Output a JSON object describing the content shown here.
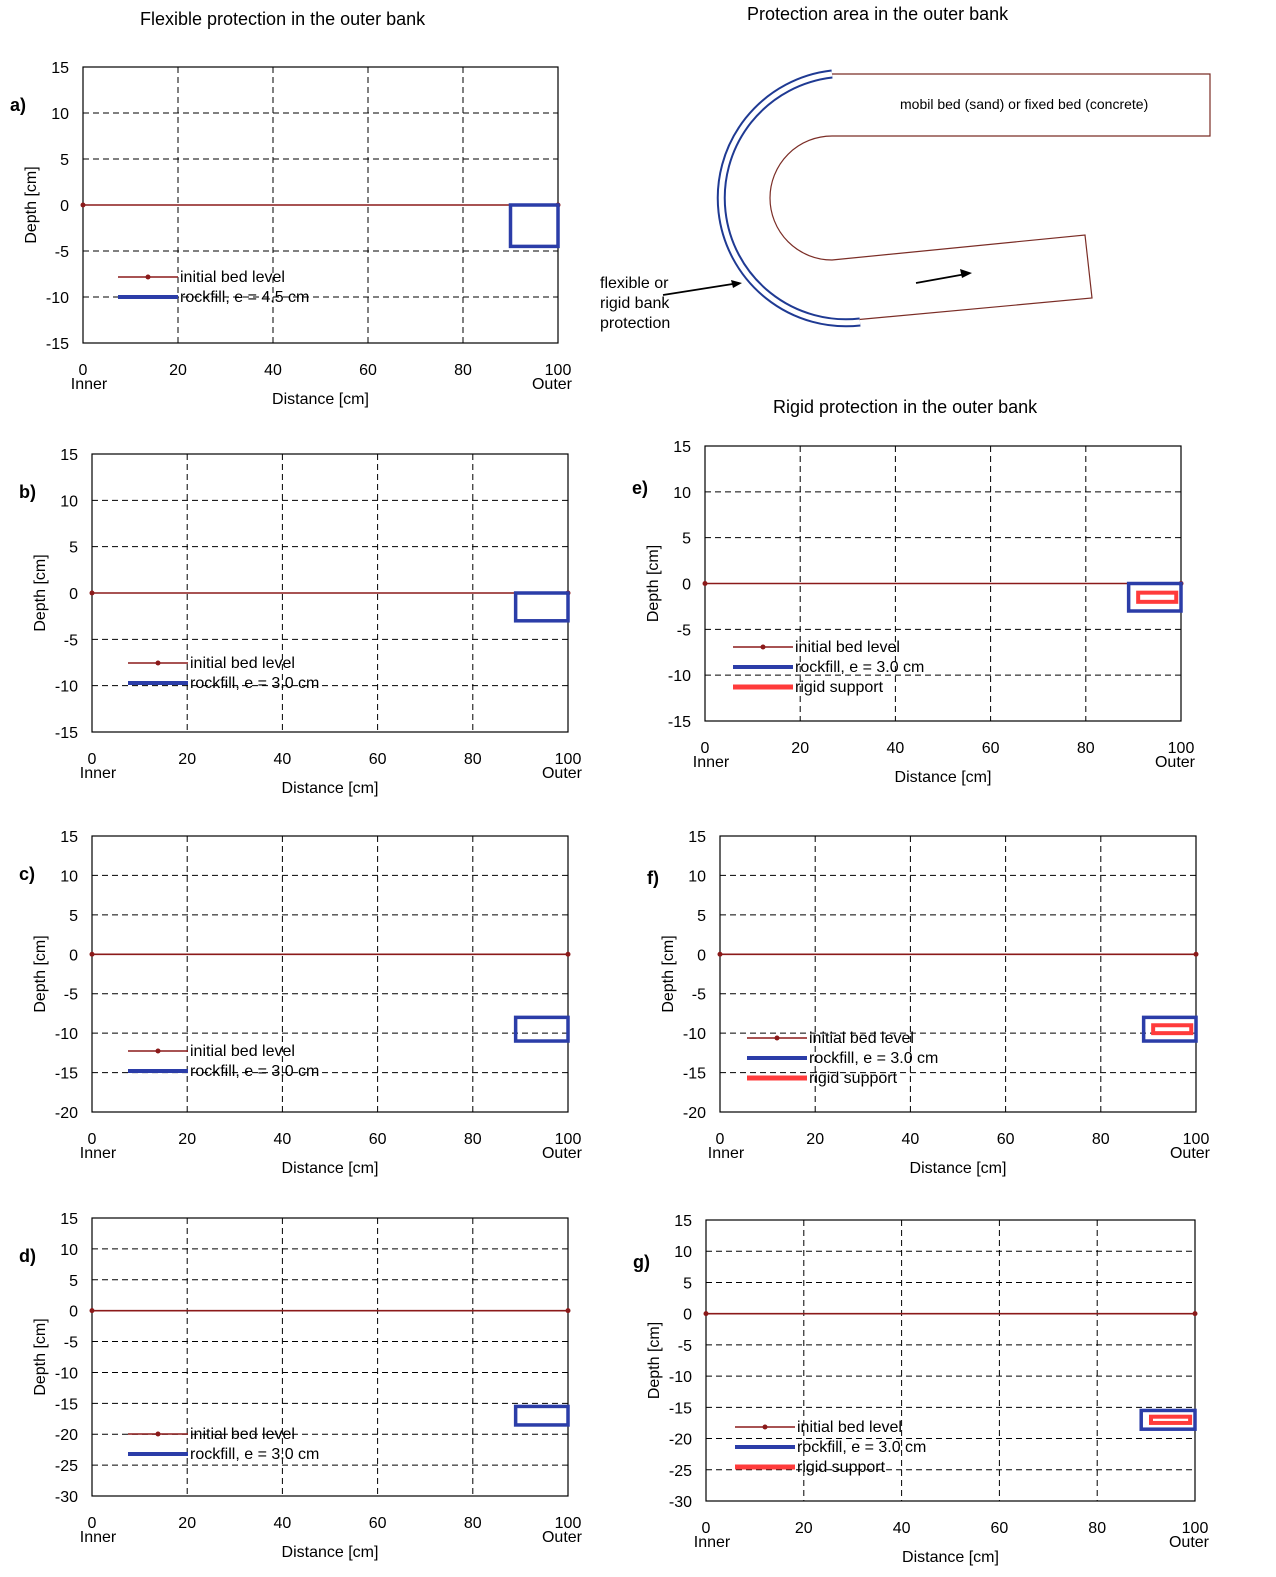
{
  "titles": {
    "flexible": "Flexible protection in the outer bank",
    "area": "Protection area in the outer bank",
    "rigid": "Rigid protection in the outer bank"
  },
  "schematic": {
    "bed_label": "mobil bed (sand) or fixed bed (concrete)",
    "protection_label": [
      "flexible or",
      "rigid bank",
      "protection"
    ],
    "colors": {
      "protection": "#1f3a93",
      "bank": "#7b2d26",
      "arrow": "#000000"
    }
  },
  "colors": {
    "bed": "#8b1a1a",
    "rockfill": "#2b3da8",
    "rigid": "#ff3b3b",
    "grid": "#000000"
  },
  "chart_data": [
    {
      "type": "line",
      "panel": "a)",
      "xlabel": "Distance [cm]",
      "ylabel": "Depth [cm]",
      "xlim": [
        0,
        100
      ],
      "ylim": [
        -15,
        15
      ],
      "xticks": [
        "0",
        "20",
        "40",
        "60",
        "80",
        "100"
      ],
      "yticks": [
        "15",
        "10",
        "5",
        "0",
        "-5",
        "-10",
        "-15"
      ],
      "inner_label": "Inner",
      "outer_label": "Outer",
      "grid": true,
      "series": [
        {
          "name": "initial bed level",
          "x": [
            0,
            100
          ],
          "y": [
            0,
            0
          ]
        },
        {
          "name": "rockfill, e = 4.5 cm",
          "x": [
            90,
            100
          ],
          "y": [
            0,
            -4.5
          ]
        }
      ]
    },
    {
      "type": "line",
      "panel": "b)",
      "xlabel": "Distance [cm]",
      "ylabel": "Depth [cm]",
      "xlim": [
        0,
        100
      ],
      "ylim": [
        -15,
        15
      ],
      "xticks": [
        "0",
        "20",
        "40",
        "60",
        "80",
        "100"
      ],
      "yticks": [
        "15",
        "10",
        "5",
        "0",
        "-5",
        "-10",
        "-15"
      ],
      "inner_label": "Inner",
      "outer_label": "Outer",
      "grid": true,
      "series": [
        {
          "name": "initial bed level",
          "x": [
            0,
            100
          ],
          "y": [
            0,
            0
          ]
        },
        {
          "name": "rockfill, e = 3.0 cm",
          "x": [
            89,
            100
          ],
          "y": [
            0,
            -3
          ]
        }
      ]
    },
    {
      "type": "line",
      "panel": "c)",
      "xlabel": "Distance [cm]",
      "ylabel": "Depth [cm]",
      "xlim": [
        0,
        100
      ],
      "ylim": [
        -20,
        15
      ],
      "xticks": [
        "0",
        "20",
        "40",
        "60",
        "80",
        "100"
      ],
      "yticks": [
        "15",
        "10",
        "5",
        "0",
        "-5",
        "-10",
        "-15",
        "-20"
      ],
      "inner_label": "Inner",
      "outer_label": "Outer",
      "grid": true,
      "series": [
        {
          "name": "initial bed level",
          "x": [
            0,
            100
          ],
          "y": [
            0,
            0
          ]
        },
        {
          "name": "rockfill, e = 3.0 cm",
          "x": [
            89,
            100
          ],
          "y": [
            -8,
            -11
          ]
        }
      ]
    },
    {
      "type": "line",
      "panel": "d)",
      "xlabel": "Distance [cm]",
      "ylabel": "Depth [cm]",
      "xlim": [
        0,
        100
      ],
      "ylim": [
        -30,
        15
      ],
      "xticks": [
        "0",
        "20",
        "40",
        "60",
        "80",
        "100"
      ],
      "yticks": [
        "15",
        "10",
        "5",
        "0",
        "-5",
        "-10",
        "-15",
        "-20",
        "-25",
        "-30"
      ],
      "inner_label": "Inner",
      "outer_label": "Outer",
      "grid": true,
      "series": [
        {
          "name": "initial bed level",
          "x": [
            0,
            100
          ],
          "y": [
            0,
            0
          ]
        },
        {
          "name": "rockfill, e = 3.0 cm",
          "x": [
            89,
            100
          ],
          "y": [
            -15.5,
            -18.5
          ]
        }
      ]
    },
    {
      "type": "line",
      "panel": "e)",
      "xlabel": "Distance [cm]",
      "ylabel": "Depth [cm]",
      "xlim": [
        0,
        100
      ],
      "ylim": [
        -15,
        15
      ],
      "xticks": [
        "0",
        "20",
        "40",
        "60",
        "80",
        "100"
      ],
      "yticks": [
        "15",
        "10",
        "5",
        "0",
        "-5",
        "-10",
        "-15"
      ],
      "inner_label": "Inner",
      "outer_label": "Outer",
      "grid": true,
      "series": [
        {
          "name": "initial bed level",
          "x": [
            0,
            100
          ],
          "y": [
            0,
            0
          ]
        },
        {
          "name": "rockfill, e = 3.0 cm",
          "x": [
            89,
            100
          ],
          "y": [
            0,
            -3
          ]
        },
        {
          "name": "rigid support",
          "x": [
            91,
            99
          ],
          "y": [
            -1,
            -2
          ]
        }
      ]
    },
    {
      "type": "line",
      "panel": "f)",
      "xlabel": "Distance [cm]",
      "ylabel": "Depth [cm]",
      "xlim": [
        0,
        100
      ],
      "ylim": [
        -20,
        15
      ],
      "xticks": [
        "0",
        "20",
        "40",
        "60",
        "80",
        "100"
      ],
      "yticks": [
        "15",
        "10",
        "5",
        "0",
        "-5",
        "-10",
        "-15",
        "-20"
      ],
      "inner_label": "Inner",
      "outer_label": "Outer",
      "grid": true,
      "series": [
        {
          "name": "initial bed level",
          "x": [
            0,
            100
          ],
          "y": [
            0,
            0
          ]
        },
        {
          "name": "rockfill, e = 3.0 cm",
          "x": [
            89,
            100
          ],
          "y": [
            -8,
            -11
          ]
        },
        {
          "name": "rigid support",
          "x": [
            91,
            99
          ],
          "y": [
            -9,
            -10
          ]
        }
      ]
    },
    {
      "type": "line",
      "panel": "g)",
      "xlabel": "Distance [cm]",
      "ylabel": "Depth [cm]",
      "xlim": [
        0,
        100
      ],
      "ylim": [
        -30,
        15
      ],
      "xticks": [
        "0",
        "20",
        "40",
        "60",
        "80",
        "100"
      ],
      "yticks": [
        "15",
        "10",
        "5",
        "0",
        "-5",
        "-10",
        "-15",
        "-20",
        "-25",
        "-30"
      ],
      "inner_label": "Inner",
      "outer_label": "Outer",
      "grid": true,
      "series": [
        {
          "name": "initial bed level",
          "x": [
            0,
            100
          ],
          "y": [
            0,
            0
          ]
        },
        {
          "name": "rockfill, e = 3.0 cm",
          "x": [
            89,
            100
          ],
          "y": [
            -15.5,
            -18.5
          ]
        },
        {
          "name": "rigid support",
          "x": [
            91,
            99
          ],
          "y": [
            -16.5,
            -17.5
          ]
        }
      ]
    }
  ]
}
